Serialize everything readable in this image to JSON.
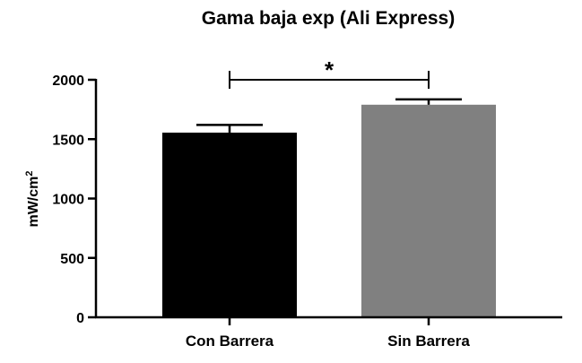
{
  "chart_data": {
    "type": "bar",
    "title": "Gama baja exp (Ali Express)",
    "xlabel": "",
    "ylabel": "mW/cm",
    "ylabel_superscript": "2",
    "ylim": [
      0,
      2000
    ],
    "yticks": [
      "0",
      "500",
      "1000",
      "1500",
      "2000"
    ],
    "categories": [
      "Con Barrera",
      "Sin Barrera"
    ],
    "values": [
      1555,
      1790
    ],
    "errors": [
      65,
      45
    ],
    "bar_colors": [
      "#000000",
      "#808080"
    ],
    "significance": {
      "label": "*",
      "from": 0,
      "to": 1
    },
    "grid": false
  }
}
